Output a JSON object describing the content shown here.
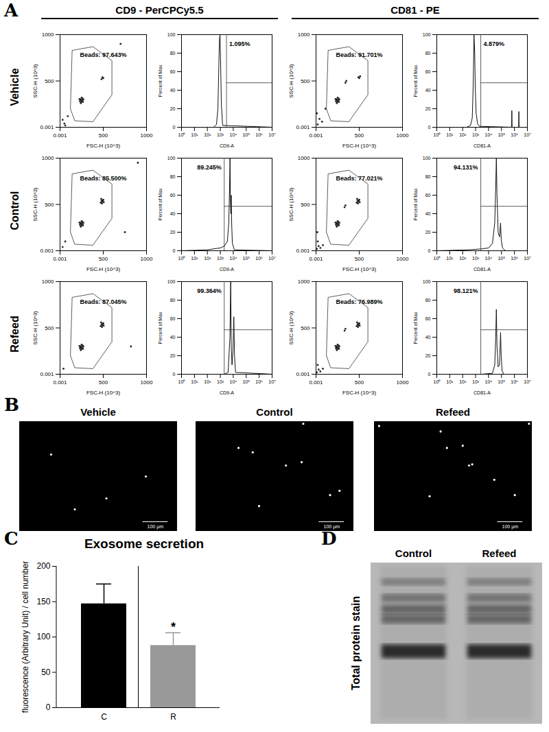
{
  "figure": {
    "panel_letters": [
      "A",
      "B",
      "C",
      "D"
    ],
    "column_headers": [
      "CD9 - PerCPCy5.5",
      "CD81 - PE"
    ],
    "row_labels": [
      "Vehicle",
      "Control",
      "Refeed"
    ]
  },
  "chart_data": [
    {
      "type": "scatter",
      "x_label": "FSC-H (10^3)",
      "y_label": "SSC-H (10^3)",
      "xlim": [
        0.001,
        1000
      ],
      "ylim": [
        0.001,
        1000
      ],
      "xticks": [
        0.001,
        500,
        1000
      ],
      "yticks": [
        0.001,
        500,
        1000
      ],
      "gate": {
        "label": "Beads: 97.643%",
        "x": [
          120,
          170,
          380,
          600,
          600,
          380,
          140,
          120
        ],
        "y": [
          200,
          70,
          60,
          350,
          720,
          870,
          830,
          200
        ]
      },
      "x": [
        230,
        240,
        250,
        260,
        245,
        255,
        235,
        265,
        250,
        240,
        270,
        225,
        480,
        490,
        500,
        50,
        30,
        90,
        700,
        60
      ],
      "y": [
        280,
        300,
        290,
        310,
        270,
        285,
        295,
        275,
        320,
        260,
        300,
        305,
        520,
        540,
        530,
        40,
        80,
        120,
        900,
        20
      ]
    },
    {
      "type": "line",
      "x_label": "CD9-A",
      "y_label": "Percent of Max",
      "log": "x",
      "xlim": [
        1,
        10000000
      ],
      "ylim": [
        0,
        100
      ],
      "xticks": [
        {
          "value": 1,
          "label": "10⁰"
        },
        {
          "value": 10,
          "label": "10¹"
        },
        {
          "value": 100,
          "label": "10²"
        },
        {
          "value": 1000,
          "label": "10³"
        },
        {
          "value": 10000,
          "label": "10⁴"
        },
        {
          "value": 100000,
          "label": "10⁵"
        },
        {
          "value": 1000000,
          "label": "10⁶"
        },
        {
          "value": 10000000,
          "label": "10⁷"
        }
      ],
      "yticks": [
        0,
        20,
        40,
        60,
        80,
        100
      ],
      "gate": {
        "label": "1.095%",
        "x": 3000,
        "y": 48
      },
      "x": [
        1,
        300,
        500,
        650,
        750,
        850,
        950,
        1050,
        1200,
        1500,
        10000000
      ],
      "y": [
        0,
        0,
        3,
        20,
        60,
        95,
        100,
        70,
        25,
        2,
        0
      ]
    },
    {
      "type": "scatter",
      "x_label": "FSC-H (10^3)",
      "y_label": "SSC-H (10^3)",
      "xlim": [
        0.001,
        1000
      ],
      "ylim": [
        0.001,
        1000
      ],
      "xticks": [
        0.001,
        500,
        1000
      ],
      "yticks": [
        0.001,
        500,
        1000
      ],
      "gate": {
        "label": "Beads: 91.701%",
        "x": [
          120,
          170,
          380,
          600,
          600,
          380,
          140,
          120
        ],
        "y": [
          200,
          70,
          60,
          350,
          720,
          870,
          830,
          200
        ]
      },
      "x": [
        230,
        240,
        250,
        260,
        245,
        255,
        235,
        265,
        250,
        240,
        270,
        225,
        340,
        350,
        490,
        500,
        510,
        20,
        40,
        10,
        70,
        110
      ],
      "y": [
        280,
        300,
        290,
        310,
        270,
        285,
        295,
        275,
        320,
        260,
        300,
        305,
        480,
        500,
        540,
        530,
        550,
        30,
        90,
        150,
        60,
        200
      ]
    },
    {
      "type": "line",
      "x_label": "CD81-A",
      "y_label": "Percent of Max",
      "log": "x",
      "xlim": [
        1,
        10000000
      ],
      "ylim": [
        0,
        100
      ],
      "xticks": [
        {
          "value": 1,
          "label": "10⁰"
        },
        {
          "value": 10,
          "label": "10¹"
        },
        {
          "value": 100,
          "label": "10²"
        },
        {
          "value": 1000,
          "label": "10³"
        },
        {
          "value": 10000,
          "label": "10⁴"
        },
        {
          "value": 100000,
          "label": "10⁵"
        },
        {
          "value": 1000000,
          "label": "10⁶"
        },
        {
          "value": 10000000,
          "label": "10⁷"
        }
      ],
      "yticks": [
        0,
        20,
        40,
        60,
        80,
        100
      ],
      "gate": {
        "label": "4.879%",
        "x": 2500,
        "y": 48
      },
      "x": [
        1,
        200,
        400,
        550,
        650,
        750,
        850,
        950,
        1100,
        1400,
        2000,
        600000,
        630000,
        660000,
        2100000,
        2200000,
        2300000,
        10000000
      ],
      "y": [
        0,
        0,
        2,
        10,
        45,
        100,
        80,
        40,
        15,
        4,
        1,
        0,
        18,
        0,
        0,
        17,
        0,
        0
      ]
    },
    {
      "type": "scatter",
      "x_label": "FSC-H (10^3)",
      "y_label": "SSC-H (10^3)",
      "xlim": [
        0.001,
        1000
      ],
      "ylim": [
        0.001,
        1000
      ],
      "xticks": [
        0.001,
        500,
        1000
      ],
      "yticks": [
        0.001,
        500,
        1000
      ],
      "gate": {
        "label": "Beads: 85.500%",
        "x": [
          120,
          170,
          380,
          600,
          600,
          380,
          140,
          120
        ],
        "y": [
          200,
          70,
          60,
          350,
          720,
          870,
          830,
          200
        ]
      },
      "x": [
        230,
        240,
        250,
        260,
        245,
        255,
        235,
        265,
        250,
        240,
        270,
        225,
        470,
        480,
        490,
        500,
        485,
        475,
        505,
        495,
        30,
        60,
        750,
        900
      ],
      "y": [
        280,
        300,
        290,
        310,
        270,
        285,
        295,
        275,
        320,
        260,
        300,
        305,
        520,
        540,
        530,
        550,
        510,
        560,
        525,
        545,
        40,
        100,
        200,
        950
      ]
    },
    {
      "type": "line",
      "x_label": "CD9-A",
      "y_label": "Percent of Max",
      "log": "x",
      "xlim": [
        1,
        10000000
      ],
      "ylim": [
        0,
        100
      ],
      "xticks": [
        {
          "value": 1,
          "label": "10⁰"
        },
        {
          "value": 10,
          "label": "10¹"
        },
        {
          "value": 100,
          "label": "10²"
        },
        {
          "value": 1000,
          "label": "10³"
        },
        {
          "value": 10000,
          "label": "10⁴"
        },
        {
          "value": 100000,
          "label": "10⁵"
        },
        {
          "value": 1000000,
          "label": "10⁶"
        },
        {
          "value": 10000000,
          "label": "10⁷"
        }
      ],
      "yticks": [
        0,
        20,
        40,
        60,
        80,
        100
      ],
      "gate": {
        "label": "89.245%",
        "x": 2000,
        "y": 48
      },
      "x": [
        1,
        100,
        300,
        1000,
        2000,
        3500,
        4500,
        5200,
        5600,
        6000,
        6500,
        7000,
        7500,
        8500,
        12000,
        10000000
      ],
      "y": [
        0,
        1,
        2,
        3,
        5,
        10,
        30,
        70,
        100,
        55,
        40,
        60,
        30,
        8,
        1,
        0
      ]
    },
    {
      "type": "scatter",
      "x_label": "FSC-H (10^3)",
      "y_label": "SSC-H (10^3)",
      "xlim": [
        0.001,
        1000
      ],
      "ylim": [
        0.001,
        1000
      ],
      "xticks": [
        0.001,
        500,
        1000
      ],
      "yticks": [
        0.001,
        500,
        1000
      ],
      "gate": {
        "label": "Beads: 77.021%",
        "x": [
          120,
          170,
          380,
          600,
          600,
          380,
          140,
          120
        ],
        "y": [
          200,
          70,
          60,
          350,
          720,
          870,
          830,
          200
        ]
      },
      "x": [
        230,
        240,
        250,
        260,
        245,
        255,
        235,
        265,
        250,
        240,
        270,
        225,
        330,
        340,
        470,
        480,
        490,
        500,
        485,
        475,
        505,
        495,
        10,
        30,
        50,
        20,
        80,
        15
      ],
      "y": [
        280,
        300,
        290,
        310,
        270,
        285,
        295,
        275,
        320,
        260,
        300,
        305,
        470,
        490,
        520,
        540,
        530,
        550,
        510,
        560,
        525,
        545,
        20,
        50,
        30,
        100,
        60,
        200
      ]
    },
    {
      "type": "line",
      "x_label": "CD81-A",
      "y_label": "Percent of Max",
      "log": "x",
      "xlim": [
        1,
        10000000
      ],
      "ylim": [
        0,
        100
      ],
      "xticks": [
        {
          "value": 1,
          "label": "10⁰"
        },
        {
          "value": 10,
          "label": "10¹"
        },
        {
          "value": 100,
          "label": "10²"
        },
        {
          "value": 1000,
          "label": "10³"
        },
        {
          "value": 10000,
          "label": "10⁴"
        },
        {
          "value": 100000,
          "label": "10⁵"
        },
        {
          "value": 1000000,
          "label": "10⁶"
        },
        {
          "value": 10000000,
          "label": "10⁷"
        }
      ],
      "yticks": [
        0,
        20,
        40,
        60,
        80,
        100
      ],
      "gate": {
        "label": "94.131%",
        "x": 2500,
        "y": 48
      },
      "x": [
        1,
        300,
        3000,
        10000,
        20000,
        30000,
        36000,
        40000,
        45000,
        55000,
        70000,
        85000,
        95000,
        120000,
        200000,
        10000000
      ],
      "y": [
        0,
        1,
        2,
        3,
        8,
        30,
        70,
        100,
        60,
        20,
        15,
        30,
        12,
        3,
        0,
        0
      ]
    },
    {
      "type": "scatter",
      "x_label": "FSC-H (10^3)",
      "y_label": "SSC-H (10^3)",
      "xlim": [
        0.001,
        1000
      ],
      "ylim": [
        0.001,
        1000
      ],
      "xticks": [
        0.001,
        500,
        1000
      ],
      "yticks": [
        0.001,
        500,
        1000
      ],
      "gate": {
        "label": "Beads: 87.045%",
        "x": [
          120,
          170,
          380,
          600,
          600,
          380,
          140,
          120
        ],
        "y": [
          200,
          70,
          60,
          350,
          720,
          870,
          830,
          200
        ]
      },
      "x": [
        230,
        240,
        250,
        260,
        245,
        255,
        235,
        265,
        250,
        240,
        270,
        225,
        470,
        480,
        490,
        500,
        485,
        475,
        505,
        495,
        40,
        820
      ],
      "y": [
        280,
        300,
        290,
        310,
        270,
        285,
        295,
        275,
        320,
        260,
        300,
        305,
        520,
        540,
        530,
        550,
        510,
        560,
        525,
        545,
        60,
        300
      ]
    },
    {
      "type": "line",
      "x_label": "CD9-A",
      "y_label": "Percent of Max",
      "log": "x",
      "xlim": [
        1,
        10000000
      ],
      "ylim": [
        0,
        100
      ],
      "xticks": [
        {
          "value": 1,
          "label": "10⁰"
        },
        {
          "value": 10,
          "label": "10¹"
        },
        {
          "value": 100,
          "label": "10²"
        },
        {
          "value": 1000,
          "label": "10³"
        },
        {
          "value": 10000,
          "label": "10⁴"
        },
        {
          "value": 100000,
          "label": "10⁵"
        },
        {
          "value": 1000000,
          "label": "10⁶"
        },
        {
          "value": 10000000,
          "label": "10⁷"
        }
      ],
      "yticks": [
        0,
        20,
        40,
        60,
        80,
        100
      ],
      "gate": {
        "label": "99.364%",
        "x": 2000,
        "y": 48
      },
      "x": [
        1,
        2000,
        4000,
        5500,
        6300,
        7000,
        8000,
        9500,
        11000,
        12500,
        15000,
        10000000
      ],
      "y": [
        0,
        0,
        2,
        40,
        100,
        30,
        10,
        25,
        62,
        20,
        2,
        0
      ]
    },
    {
      "type": "scatter",
      "x_label": "FSC-H (10^3)",
      "y_label": "SSC-H (10^3)",
      "xlim": [
        0.001,
        1000
      ],
      "ylim": [
        0.001,
        1000
      ],
      "xticks": [
        0.001,
        500,
        1000
      ],
      "yticks": [
        0.001,
        500,
        1000
      ],
      "gate": {
        "label": "Beads: 76.989%",
        "x": [
          120,
          170,
          380,
          600,
          600,
          380,
          140,
          120
        ],
        "y": [
          200,
          70,
          60,
          350,
          720,
          870,
          830,
          200
        ]
      },
      "x": [
        230,
        240,
        250,
        260,
        245,
        255,
        235,
        265,
        250,
        240,
        270,
        225,
        330,
        340,
        470,
        480,
        490,
        500,
        485,
        475,
        505,
        495,
        10,
        30,
        50,
        20,
        80
      ],
      "y": [
        280,
        300,
        290,
        310,
        270,
        285,
        295,
        275,
        320,
        260,
        300,
        305,
        470,
        490,
        520,
        540,
        530,
        550,
        510,
        560,
        525,
        545,
        20,
        50,
        30,
        100,
        60
      ]
    },
    {
      "type": "line",
      "x_label": "CD81-A",
      "y_label": "Percent of Max",
      "log": "x",
      "xlim": [
        1,
        10000000
      ],
      "ylim": [
        0,
        100
      ],
      "xticks": [
        {
          "value": 1,
          "label": "10⁰"
        },
        {
          "value": 10,
          "label": "10¹"
        },
        {
          "value": 100,
          "label": "10²"
        },
        {
          "value": 1000,
          "label": "10³"
        },
        {
          "value": 10000,
          "label": "10⁴"
        },
        {
          "value": 100000,
          "label": "10⁵"
        },
        {
          "value": 1000000,
          "label": "10⁶"
        },
        {
          "value": 10000000,
          "label": "10⁷"
        }
      ],
      "yticks": [
        0,
        20,
        40,
        60,
        80,
        100
      ],
      "gate": {
        "label": "98.121%",
        "x": 2500,
        "y": 48
      },
      "x": [
        1,
        3000,
        20000,
        30000,
        36000,
        40000,
        45000,
        55000,
        70000,
        85000,
        95000,
        110000,
        150000,
        10000000
      ],
      "y": [
        0,
        0,
        1,
        10,
        40,
        70,
        30,
        8,
        10,
        45,
        20,
        4,
        0,
        0
      ]
    },
    {
      "type": "image",
      "title": "Vehicle",
      "scale_bar": "100 µm",
      "xlim": [
        0,
        100
      ],
      "ylim": [
        0,
        100
      ],
      "x": [
        20,
        55,
        80,
        35
      ],
      "y": [
        70,
        30,
        50,
        20
      ]
    },
    {
      "type": "image",
      "title": "Control",
      "scale_bar": "100 µm",
      "xlim": [
        0,
        100
      ],
      "ylim": [
        0,
        100
      ],
      "x": [
        27,
        36,
        57,
        67,
        40,
        91,
        85,
        68
      ],
      "y": [
        76,
        72,
        60,
        63,
        23,
        37,
        33,
        98
      ]
    },
    {
      "type": "image",
      "title": "Refeed",
      "scale_bar": "100 µm",
      "xlim": [
        0,
        100
      ],
      "ylim": [
        0,
        100
      ],
      "x": [
        3,
        46,
        56,
        60,
        62,
        35,
        76,
        89,
        98,
        42
      ],
      "y": [
        96,
        76,
        78,
        60,
        61,
        32,
        47,
        33,
        98,
        91
      ]
    },
    {
      "type": "bar",
      "title": "Exosome secretion",
      "y_label": "fluorescence (Arbitrary Unit) / cell number",
      "categories": [
        "C",
        "R"
      ],
      "values": [
        147,
        88
      ],
      "errors": [
        28,
        18
      ],
      "colors": [
        "#000000",
        "#999999"
      ],
      "ylim": [
        0,
        200
      ],
      "yticks": [
        0,
        50,
        100,
        150,
        200
      ],
      "annotations": [
        {
          "category": "R",
          "text": "*"
        }
      ]
    },
    {
      "type": "gel",
      "title": "Total protein stain",
      "lanes": [
        "Control",
        "Refeed"
      ],
      "bands": [
        {
          "y": 12,
          "intensity": 0.35
        },
        {
          "y": 22,
          "intensity": 0.45
        },
        {
          "y": 29,
          "intensity": 0.55
        },
        {
          "y": 35,
          "intensity": 0.55
        },
        {
          "y": 55,
          "intensity": 1
        }
      ]
    }
  ]
}
